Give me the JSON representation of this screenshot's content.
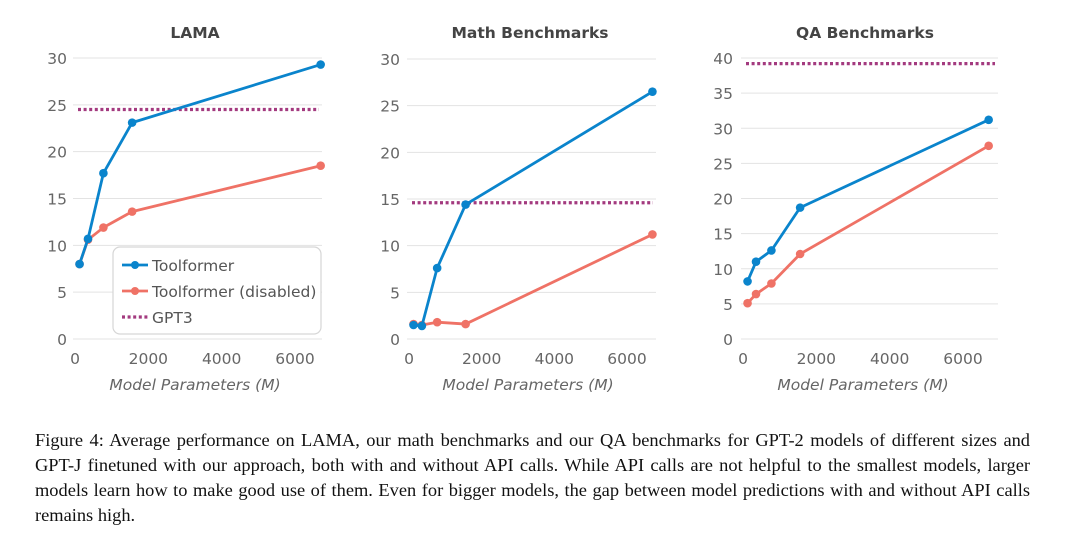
{
  "chart_data": [
    {
      "type": "line",
      "title": "LAMA",
      "xlabel": "Model Parameters (M)",
      "ylabel": "",
      "xlim": [
        0,
        7000
      ],
      "ylim": [
        0,
        30
      ],
      "xticks": [
        0,
        2000,
        4000,
        6000
      ],
      "yticks": [
        0,
        5,
        10,
        15,
        20,
        25,
        30
      ],
      "grid": true,
      "legend": "bottom-right",
      "x": [
        124,
        355,
        775,
        1558,
        6700
      ],
      "series": [
        {
          "name": "Toolformer",
          "color": "#0a84cc",
          "values": [
            8.0,
            10.7,
            17.7,
            23.1,
            29.3
          ]
        },
        {
          "name": "Toolformer (disabled)",
          "color": "#ef7266",
          "values": [
            8.0,
            10.6,
            11.9,
            13.6,
            18.5
          ]
        },
        {
          "name": "GPT3",
          "color": "#a33a7f",
          "style": "dotted",
          "constant": 24.5
        }
      ]
    },
    {
      "type": "line",
      "title": "Math Benchmarks",
      "xlabel": "Model Parameters (M)",
      "ylabel": "",
      "xlim": [
        0,
        7000
      ],
      "ylim": [
        0,
        30
      ],
      "xticks": [
        0,
        2000,
        4000,
        6000
      ],
      "yticks": [
        0,
        5,
        10,
        15,
        20,
        25,
        30
      ],
      "grid": true,
      "x": [
        124,
        355,
        775,
        1558,
        6700
      ],
      "series": [
        {
          "name": "Toolformer",
          "color": "#0a84cc",
          "values": [
            1.5,
            1.4,
            7.6,
            14.4,
            26.5
          ]
        },
        {
          "name": "Toolformer (disabled)",
          "color": "#ef7266",
          "values": [
            1.6,
            1.5,
            1.8,
            1.6,
            11.2
          ]
        },
        {
          "name": "GPT3",
          "color": "#a33a7f",
          "style": "dotted",
          "constant": 14.6
        }
      ]
    },
    {
      "type": "line",
      "title": "QA Benchmarks",
      "xlabel": "Model Parameters (M)",
      "ylabel": "",
      "xlim": [
        0,
        7000
      ],
      "ylim": [
        0,
        40
      ],
      "xticks": [
        0,
        2000,
        4000,
        6000
      ],
      "yticks": [
        0,
        5,
        10,
        15,
        20,
        25,
        30,
        35,
        40
      ],
      "grid": true,
      "x": [
        124,
        355,
        775,
        1558,
        6700
      ],
      "series": [
        {
          "name": "Toolformer",
          "color": "#0a84cc",
          "values": [
            8.2,
            11.0,
            12.6,
            18.7,
            31.2
          ]
        },
        {
          "name": "Toolformer (disabled)",
          "color": "#ef7266",
          "values": [
            5.1,
            6.4,
            7.9,
            12.1,
            27.5
          ]
        },
        {
          "name": "GPT3",
          "color": "#a33a7f",
          "style": "dotted",
          "constant": 39.2
        }
      ]
    }
  ],
  "caption": "Figure 4: Average performance on LAMA, our math benchmarks and our QA benchmarks for GPT-2 models of different sizes and GPT-J finetuned with our approach, both with and without API calls. While API calls are not helpful to the smallest models, larger models learn how to make good use of them. Even for bigger models, the gap between model predictions with and without API calls remains high."
}
